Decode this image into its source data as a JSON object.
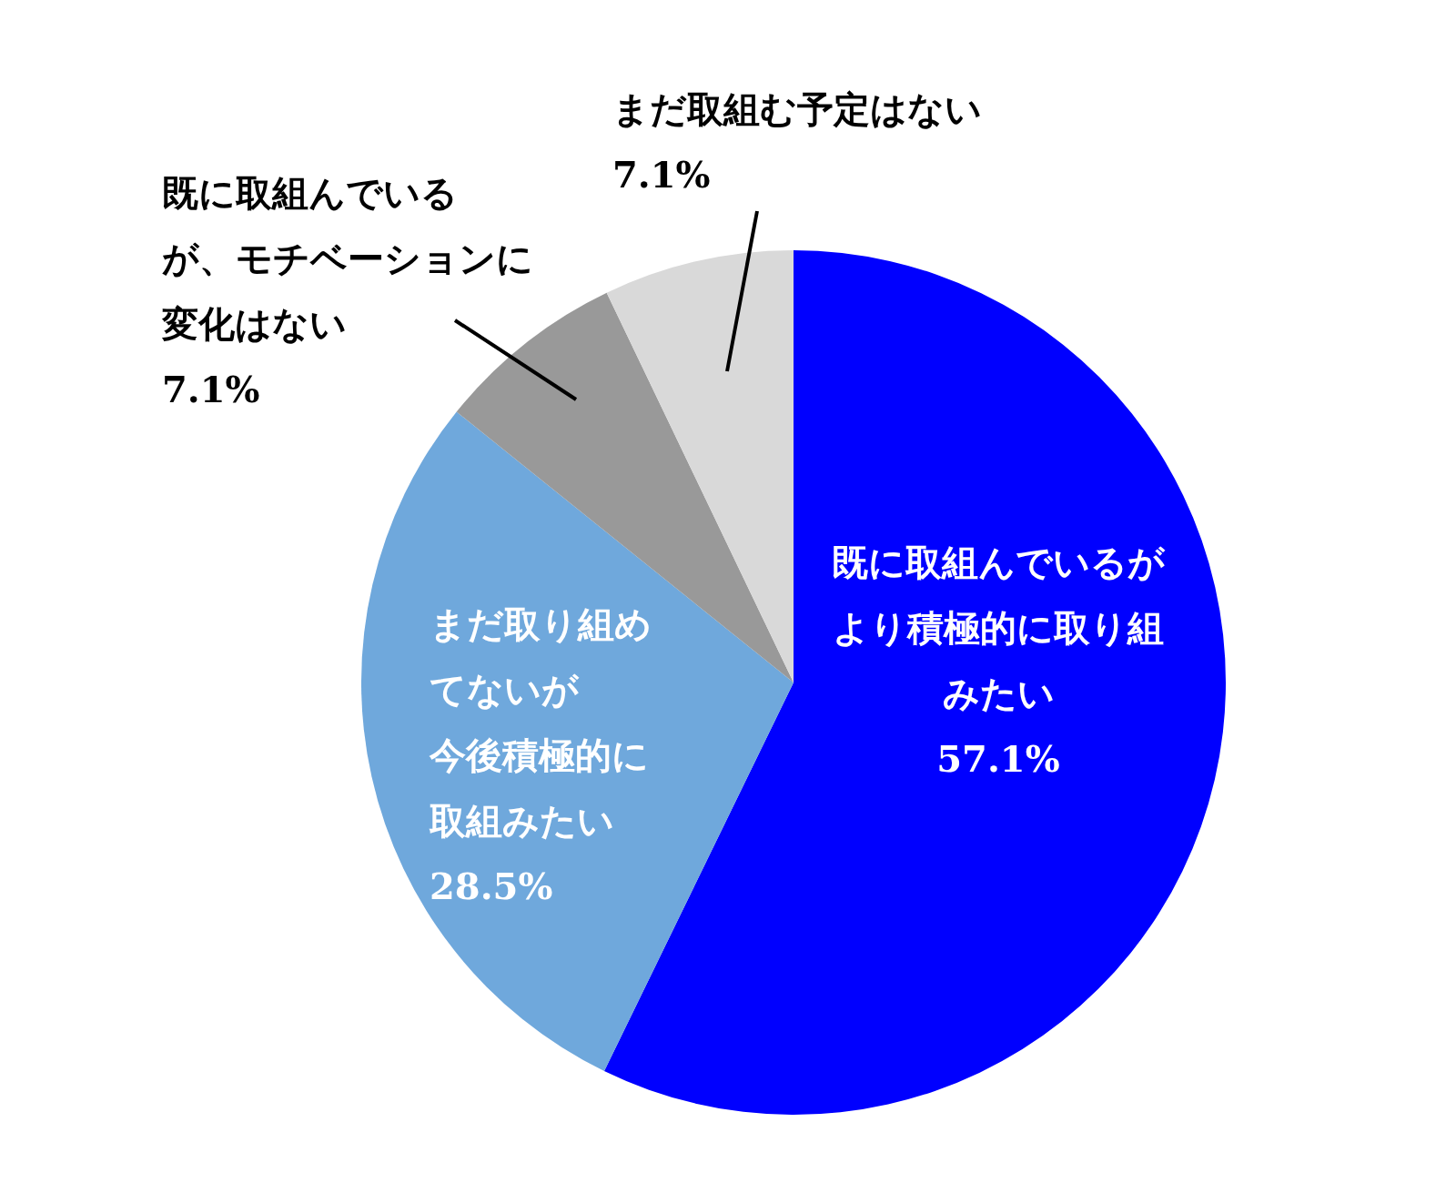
{
  "chart_data": {
    "type": "pie",
    "categories": [
      "既に取組んでいるがより積極的に取り組みたい",
      "まだ取り組めてないが今後積極的に取組みたい",
      "既に取組んでいるが、モチベーションに変化はない",
      "まだ取組む予定はない"
    ],
    "values": [
      57.1,
      28.5,
      7.1,
      7.1
    ],
    "colors": [
      "#0000ff",
      "#6fa8dc",
      "#999999",
      "#d9d9d9"
    ],
    "value_labels": [
      "57.1%",
      "28.5%",
      "7.1%",
      "7.1%"
    ]
  }
}
